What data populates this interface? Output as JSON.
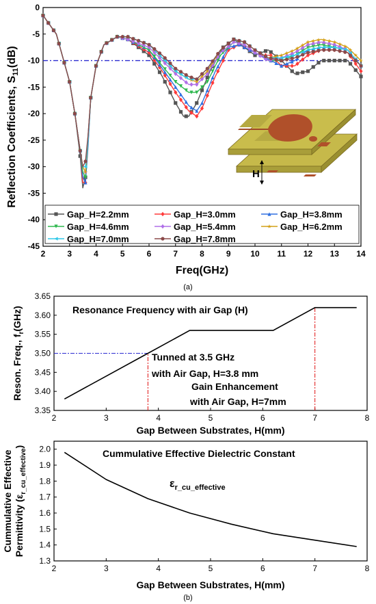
{
  "captions": {
    "a": "(a)",
    "b": "(b)"
  },
  "chart_data": [
    {
      "type": "line",
      "panel": "a",
      "xlabel": "Freq(GHz)",
      "ylabel": "Reflection Coefficients, S",
      "ylabel_sub": "11",
      "ylabel_unit": "(dB)",
      "xlim": [
        2,
        14
      ],
      "ylim": [
        -45,
        0
      ],
      "xticks": [
        2,
        3,
        4,
        5,
        6,
        7,
        8,
        9,
        10,
        11,
        12,
        13,
        14
      ],
      "yticks": [
        0,
        -5,
        -10,
        -15,
        -20,
        -25,
        -30,
        -35,
        -40,
        -45
      ],
      "reference_line": {
        "y": -10,
        "color": "#2b2bd0"
      },
      "legend_placement": "bottom",
      "inset_label": "H",
      "series": [
        {
          "name": "Gap_H=2.2mm",
          "color": "#555555",
          "marker": "square",
          "x": [
            2,
            2.5,
            3,
            3.2,
            3.4,
            3.5,
            3.6,
            3.7,
            3.8,
            4.0,
            4.3,
            4.8,
            5.2,
            6.0,
            6.5,
            7.0,
            7.3,
            7.5,
            7.8,
            8.3,
            8.8,
            9.2,
            9.6,
            10.0,
            10.5,
            11.0,
            11.5,
            12.0,
            12.5,
            13.0,
            13.5,
            14.0
          ],
          "y": [
            -1.5,
            -5,
            -14,
            -20,
            -28,
            -34,
            -32,
            -24,
            -17,
            -11,
            -7,
            -5.5,
            -6,
            -9,
            -13,
            -18,
            -20.5,
            -20.5,
            -18,
            -12,
            -7.5,
            -6,
            -7.5,
            -9,
            -8,
            -10,
            -12.5,
            -12,
            -10,
            -10,
            -10,
            -13
          ]
        },
        {
          "name": "Gap_H=3.0mm",
          "color": "#ff3a3a",
          "marker": "diamond",
          "x": [
            2,
            2.5,
            3,
            3.2,
            3.4,
            3.5,
            3.6,
            3.7,
            3.8,
            4.0,
            4.3,
            4.8,
            5.2,
            6.0,
            6.5,
            7.0,
            7.5,
            7.8,
            8.0,
            8.5,
            9.0,
            9.4,
            9.8,
            10.2,
            10.6,
            11.0,
            11.5,
            12.0,
            12.5,
            13.0,
            13.5,
            14.0
          ],
          "y": [
            -1.5,
            -5,
            -14,
            -20,
            -27,
            -33,
            -33,
            -25,
            -17,
            -11,
            -7,
            -5.5,
            -6,
            -8.5,
            -12,
            -16,
            -19.5,
            -20.5,
            -19,
            -13,
            -8,
            -7,
            -8,
            -9,
            -9,
            -11,
            -11,
            -9,
            -8,
            -8,
            -8.5,
            -12
          ]
        },
        {
          "name": "Gap_H=3.8mm",
          "color": "#2e6fe0",
          "marker": "triangle-up",
          "x": [
            2,
            2.5,
            3,
            3.2,
            3.4,
            3.5,
            3.6,
            3.7,
            3.8,
            4.0,
            4.3,
            4.8,
            5.2,
            6.0,
            6.5,
            7.0,
            7.5,
            7.8,
            8.0,
            8.5,
            9.0,
            9.4,
            9.8,
            10.2,
            10.6,
            11.0,
            11.5,
            12.0,
            12.5,
            13.0,
            13.5,
            14.0
          ],
          "y": [
            -1.5,
            -5,
            -14,
            -20,
            -27,
            -32,
            -33,
            -26,
            -17,
            -11,
            -7,
            -5.5,
            -6,
            -8,
            -11.5,
            -15,
            -18.5,
            -19.5,
            -18,
            -12,
            -7.5,
            -7,
            -8,
            -9,
            -10,
            -11,
            -10,
            -8,
            -7.5,
            -7.5,
            -8,
            -11
          ]
        },
        {
          "name": "Gap_H=4.6mm",
          "color": "#2fb84f",
          "marker": "triangle-down",
          "x": [
            2,
            2.5,
            3,
            3.2,
            3.4,
            3.5,
            3.6,
            3.7,
            3.8,
            4.0,
            4.3,
            4.8,
            5.2,
            6.0,
            6.5,
            7.0,
            7.5,
            7.8,
            8.2,
            8.7,
            9.2,
            9.6,
            10.0,
            10.5,
            11.0,
            11.5,
            12.0,
            12.5,
            13.0,
            13.5,
            14.0
          ],
          "y": [
            -1.5,
            -5,
            -14,
            -20,
            -27,
            -31,
            -32,
            -25,
            -17,
            -11,
            -7,
            -5.5,
            -6,
            -8,
            -11,
            -14,
            -16,
            -16,
            -14,
            -9,
            -6.5,
            -7,
            -8.5,
            -10,
            -10,
            -9,
            -7.5,
            -7,
            -7.5,
            -8,
            -11
          ]
        },
        {
          "name": "Gap_H=5.4mm",
          "color": "#b06fe8",
          "marker": "diamond",
          "x": [
            2,
            2.5,
            3,
            3.2,
            3.4,
            3.5,
            3.6,
            3.7,
            3.8,
            4.0,
            4.3,
            4.8,
            5.2,
            6.0,
            6.5,
            7.0,
            7.5,
            7.8,
            8.2,
            8.7,
            9.2,
            9.6,
            10.0,
            10.5,
            11.0,
            11.5,
            12.0,
            12.5,
            13.0,
            13.5,
            14.0
          ],
          "y": [
            -1.5,
            -5,
            -14,
            -20,
            -27,
            -30,
            -31,
            -25,
            -17,
            -11,
            -7,
            -5.5,
            -6,
            -7.5,
            -10,
            -12.5,
            -14.5,
            -14.5,
            -12.5,
            -8.5,
            -6.5,
            -7,
            -8.5,
            -10,
            -9.5,
            -8.5,
            -7,
            -6.5,
            -7,
            -8,
            -11
          ]
        },
        {
          "name": "Gap_H=6.2mm",
          "color": "#d4a017",
          "marker": "star",
          "x": [
            2,
            2.5,
            3,
            3.2,
            3.4,
            3.5,
            3.6,
            3.7,
            3.8,
            4.0,
            4.3,
            4.8,
            5.2,
            6.0,
            6.5,
            7.0,
            7.5,
            7.8,
            8.2,
            8.7,
            9.2,
            9.6,
            10.0,
            10.5,
            11.0,
            11.5,
            12.0,
            12.5,
            13.0,
            13.5,
            14.0
          ],
          "y": [
            -1.5,
            -5,
            -14,
            -20,
            -27,
            -30,
            -31,
            -25,
            -17,
            -11,
            -7,
            -5.5,
            -5.5,
            -7,
            -9.5,
            -12,
            -13.5,
            -14,
            -12,
            -8,
            -6,
            -6.5,
            -8,
            -9.5,
            -9,
            -8,
            -6.5,
            -6,
            -6.5,
            -7.5,
            -10
          ]
        },
        {
          "name": "Gap_H=7.0mm",
          "color": "#30c8e8",
          "marker": "triangle-left",
          "x": [
            2,
            2.5,
            3,
            3.2,
            3.4,
            3.5,
            3.6,
            3.7,
            3.8,
            4.0,
            4.3,
            4.8,
            5.2,
            6.0,
            6.5,
            7.0,
            7.5,
            7.8,
            8.2,
            8.7,
            9.2,
            9.6,
            10.0,
            10.5,
            11.0,
            11.5,
            12.0,
            12.5,
            13.0,
            13.5,
            14.0
          ],
          "y": [
            -1.5,
            -5,
            -14,
            -20,
            -27,
            -30,
            -30,
            -25,
            -17,
            -11,
            -7,
            -5.5,
            -5.5,
            -7,
            -9.5,
            -12,
            -13.5,
            -13.5,
            -11.5,
            -8,
            -6,
            -6.5,
            -8,
            -9.5,
            -9.5,
            -9,
            -8,
            -7.5,
            -7.5,
            -8,
            -11
          ]
        },
        {
          "name": "Gap_H=7.8mm",
          "color": "#8b4a4a",
          "marker": "circle",
          "x": [
            2,
            2.5,
            3,
            3.2,
            3.4,
            3.5,
            3.6,
            3.7,
            3.8,
            4.0,
            4.3,
            4.8,
            5.2,
            6.0,
            6.5,
            7.0,
            7.5,
            7.8,
            8.2,
            8.7,
            9.2,
            9.6,
            10.0,
            10.5,
            11.0,
            11.5,
            12.0,
            12.5,
            13.0,
            13.5,
            14.0
          ],
          "y": [
            -1.5,
            -5,
            -14,
            -20,
            -27,
            -30,
            -29,
            -24,
            -17,
            -11,
            -7,
            -5.5,
            -5.5,
            -7,
            -9,
            -11.5,
            -13,
            -13.5,
            -11.5,
            -8,
            -6,
            -6.5,
            -8,
            -9.5,
            -10,
            -9.5,
            -8.5,
            -8,
            -8,
            -8.5,
            -11
          ]
        }
      ]
    },
    {
      "type": "line",
      "panel": "b-top",
      "title": "Resonance Frequency with air Gap (H)",
      "xlabel": "Gap Between Substrates, H(mm)",
      "ylabel": "Reson. Freq., f",
      "ylabel_sub": "r",
      "ylabel_unit": "(GHz)",
      "xlim": [
        2,
        8
      ],
      "ylim": [
        3.35,
        3.65
      ],
      "xticks": [
        2,
        3,
        4,
        5,
        6,
        7,
        8
      ],
      "yticks": [
        3.65,
        3.6,
        3.55,
        3.5,
        3.45,
        3.4,
        3.35
      ],
      "series": [
        {
          "color": "#000000",
          "x": [
            2.2,
            3.0,
            3.8,
            4.6,
            5.4,
            6.2,
            7.0,
            7.8
          ],
          "y": [
            3.38,
            3.44,
            3.5,
            3.56,
            3.56,
            3.56,
            3.62,
            3.62
          ]
        }
      ],
      "guide_lines": {
        "h": {
          "y": 3.5,
          "x_from": 2,
          "x_to": 3.8,
          "color": "#2b2bd0"
        },
        "v": [
          {
            "x": 3.8,
            "y_from": 3.35,
            "y_to": 3.5,
            "color": "#e01010"
          },
          {
            "x": 7.0,
            "y_from": 3.35,
            "y_to": 3.62,
            "color": "#e01010"
          }
        ]
      },
      "annotations": [
        {
          "line1": "Tunned at 3.5 GHz",
          "line2": "with Air Gap, H=3.8 mm"
        },
        {
          "line1": "Gain Enhancement",
          "line2": "with Air Gap, H=7mm"
        }
      ]
    },
    {
      "type": "line",
      "panel": "b-bottom",
      "title": "Cummulative Effective Dielectric Constant",
      "xlabel": "Gap Between Substrates, H(mm)",
      "ylabel_line1": "Cummulative Effective",
      "ylabel_line2": "Permittivity (ε",
      "ylabel_sub": "r_cu_effective",
      "ylabel_close": ")",
      "curve_label": "ε",
      "curve_label_sub": "r_cu_effective",
      "xlim": [
        2,
        8
      ],
      "ylim": [
        1.3,
        2.05
      ],
      "xticks": [
        2,
        3,
        4,
        5,
        6,
        7,
        8
      ],
      "yticks": [
        2.0,
        1.9,
        1.8,
        1.7,
        1.6,
        1.5,
        1.4,
        1.3
      ],
      "series": [
        {
          "color": "#000000",
          "x": [
            2.2,
            3.0,
            3.8,
            4.6,
            5.4,
            6.2,
            7.0,
            7.8
          ],
          "y": [
            1.98,
            1.81,
            1.69,
            1.6,
            1.53,
            1.47,
            1.43,
            1.39
          ]
        }
      ]
    }
  ]
}
